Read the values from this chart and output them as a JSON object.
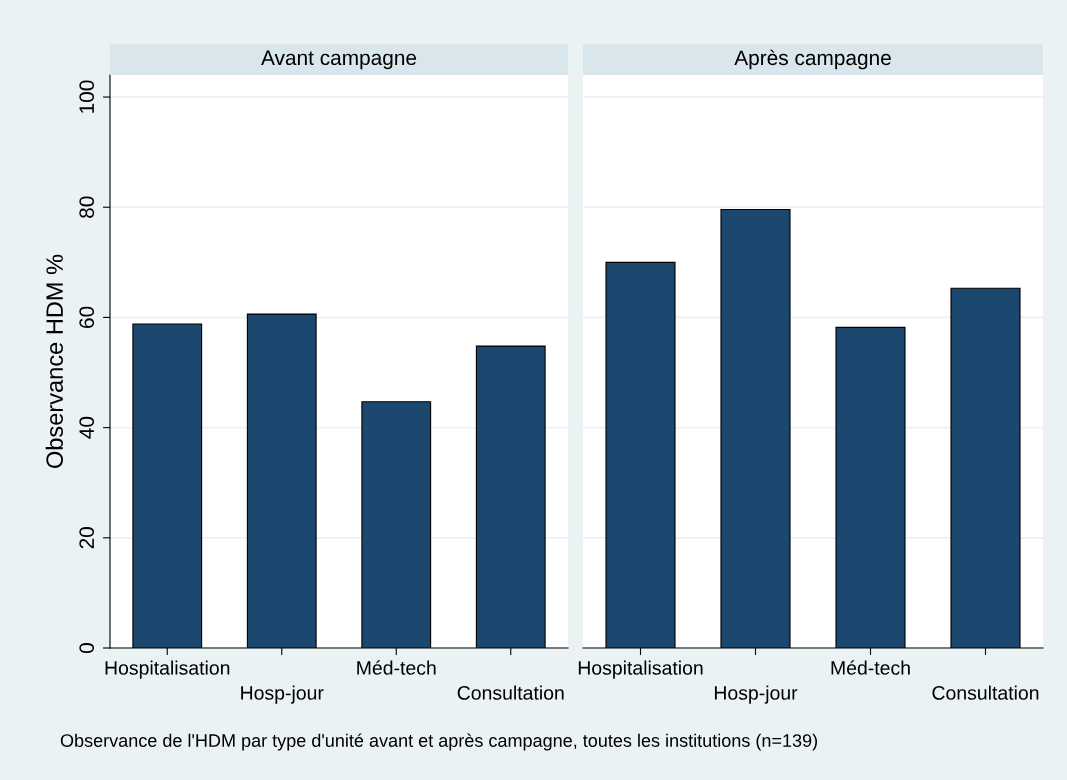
{
  "chart_data": [
    {
      "type": "bar",
      "title": "Avant campagne",
      "ylabel": "Observance HDM %",
      "categories": [
        "Hospitalisation",
        "Hosp-jour",
        "Méd-tech",
        "Consultation"
      ],
      "values": [
        58.8,
        60.6,
        44.7,
        54.8
      ],
      "color": "#1c476e",
      "ylim": [
        0,
        104
      ],
      "yticks": [
        0,
        20,
        40,
        60,
        80,
        100
      ],
      "grid": "y",
      "legend": false,
      "annotations": [
        "Observance de l'HDM par type d'unité avant et après campagne, toutes les institutions (n=139)"
      ]
    },
    {
      "type": "bar",
      "title": "Après campagne",
      "categories": [
        "Hospitalisation",
        "Hosp-jour",
        "Méd-tech",
        "Consultation"
      ],
      "values": [
        70.0,
        79.6,
        58.2,
        65.3
      ],
      "color": "#1c476e",
      "ylim": [
        0,
        104
      ],
      "yticks": [
        0,
        20,
        40,
        60,
        80,
        100
      ],
      "grid": "y",
      "legend": false,
      "tick_labels": "x"
    }
  ]
}
